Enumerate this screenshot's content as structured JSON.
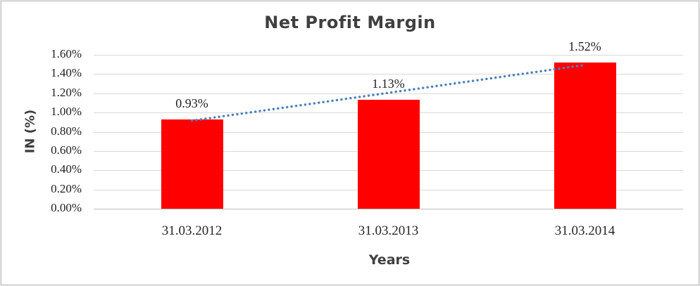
{
  "chart_data": {
    "type": "bar",
    "title": "Net Profit Margin",
    "xlabel": "Years",
    "ylabel": "IN (%)",
    "categories": [
      "31.03.2012",
      "31.03.2013",
      "31.03.2014"
    ],
    "values": [
      0.93,
      1.13,
      1.52
    ],
    "data_labels": [
      "0.93%",
      "1.13%",
      "1.52%"
    ],
    "ylim": [
      0,
      1.6
    ],
    "ytick_step": 0.2,
    "ytick_labels": [
      "0.00%",
      "0.20%",
      "0.40%",
      "0.60%",
      "0.80%",
      "1.00%",
      "1.20%",
      "1.40%",
      "1.60%"
    ],
    "grid": true,
    "legend": "none",
    "series_color": "#ff0000",
    "trendline": {
      "type": "linear",
      "style": "dotted",
      "color": "#4f81bd"
    }
  }
}
